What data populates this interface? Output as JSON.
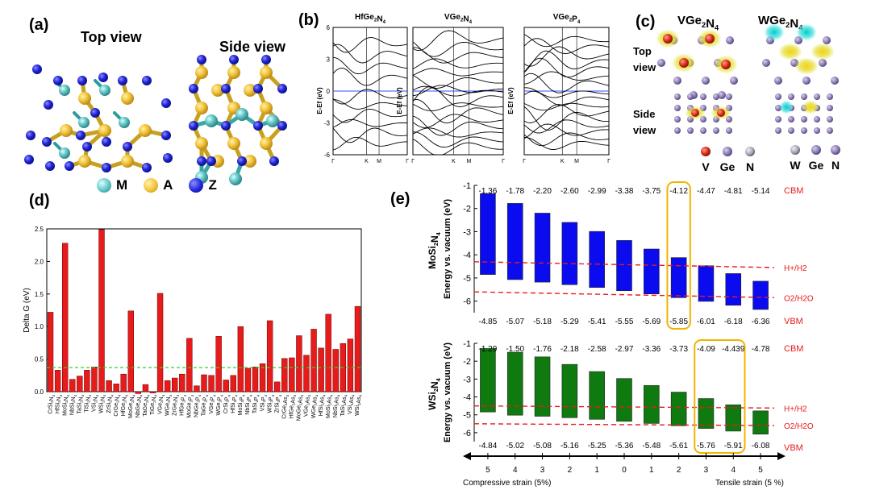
{
  "panel_a": {
    "label": "(a)",
    "top_view": "Top view",
    "side_view": "Side view",
    "legend": [
      {
        "symbol": "M",
        "color": "#5fc4c4"
      },
      {
        "symbol": "A",
        "color": "#f2c23a"
      },
      {
        "symbol": "Z",
        "color": "#1a1fd6"
      }
    ]
  },
  "panel_b": {
    "label": "(b)",
    "titles": [
      "HfGe2N4",
      "VGe2N4",
      "VGe2P4"
    ],
    "ylabel": "E-Ef (eV)",
    "yticks": [
      "6",
      "3",
      "0",
      "-3",
      "-6"
    ],
    "kpoints": [
      "Γ",
      "K",
      "M",
      "Γ"
    ]
  },
  "panel_c": {
    "label": "(c)",
    "titles": [
      "VGe2N4",
      "WGe2N4"
    ],
    "top_label": "Top view",
    "side_label": "Side view",
    "legend_left": [
      "V",
      "Ge",
      "N"
    ],
    "legend_right": [
      "W",
      "Ge",
      "N"
    ]
  },
  "panel_d": {
    "label": "(d)",
    "colors": {
      "bar": "#e81b1b",
      "threshold": "#2ad32a"
    }
  },
  "panel_e": {
    "label": "(e)",
    "cbm_label": "CBM",
    "vbm_label": "VBM",
    "h_label": "H+/H2",
    "o_label": "O2/H2O",
    "left_axis_label": "Compressive strain (5%)",
    "right_axis_label": "Tensile strain (5 %)",
    "colors": {
      "mosi": "#0b0bf0",
      "wsi": "#0f7a0f",
      "dashed": "#e81b1b",
      "box": "#f0b400"
    }
  },
  "chart_data": [
    {
      "type": "bar",
      "panel": "(d)",
      "title": "",
      "xlabel": "",
      "ylabel": "Delta G (eV)",
      "ylim": [
        0,
        2.5
      ],
      "yticks": [
        0.0,
        0.5,
        1.0,
        1.5,
        2.0,
        2.5
      ],
      "threshold": 0.37,
      "categories": [
        "CrSi2N4",
        "HfSi2N4",
        "MoSi2N4",
        "NbSi2N4",
        "TaSi2N4",
        "TiSi2N4",
        "VSi2N4",
        "WSi2N4",
        "ZrSi2N4",
        "CrGe2N4",
        "HfGe2N4",
        "MoGe2N4",
        "NbGe2N4",
        "TaGe2N4",
        "TiGe2N4",
        "VGe2N4",
        "WGe2N4",
        "ZrGe2N4",
        "HfGe2P4",
        "MoGe2P4",
        "NbGe2P4",
        "TaGe2P4",
        "VGe2P4",
        "WGe2P4",
        "CrSi2P4",
        "HfSi2P4",
        "MoSi2P4",
        "NbSi2P4",
        "TaSi2P4",
        "VSi2P4",
        "WSi2P4",
        "ZrSi2P4",
        "CrGe2As4",
        "HfGe2As4",
        "MoGe2As4",
        "VGe2As4",
        "WGe2As4",
        "HfSi2As4",
        "MoSi2As4",
        "NbSi2As4",
        "TaSi2As4",
        "VSi2As4",
        "WSi2As4"
      ],
      "values": [
        1.22,
        0.33,
        2.28,
        0.19,
        0.24,
        0.33,
        0.38,
        2.49,
        0.17,
        0.12,
        0.27,
        1.24,
        -0.03,
        0.11,
        -0.02,
        1.51,
        0.17,
        0.21,
        0.27,
        0.82,
        0.09,
        0.26,
        0.25,
        0.85,
        0.18,
        0.25,
        1.0,
        0.36,
        0.38,
        0.43,
        1.09,
        0.15,
        0.51,
        0.52,
        0.86,
        0.56,
        0.96,
        0.67,
        1.19,
        0.65,
        0.74,
        0.81,
        1.31
      ]
    },
    {
      "type": "bar",
      "panel": "(e) top",
      "title": "MoSi2N4",
      "xlabel": "",
      "ylabel": "Energy vs. vacuum (eV)",
      "ylim": [
        -6.5,
        -1
      ],
      "yticks": [
        -1,
        -2,
        -3,
        -4,
        -5,
        -6
      ],
      "categories": [
        "5",
        "4",
        "3",
        "2",
        "1",
        "0",
        "1",
        "2",
        "3",
        "4",
        "5"
      ],
      "series": [
        {
          "name": "CBM",
          "values": [
            -1.36,
            -1.78,
            -2.2,
            -2.6,
            -2.99,
            -3.38,
            -3.75,
            -4.12,
            -4.47,
            -4.81,
            -5.14
          ],
          "labels": [
            "-1.36",
            "-1.78",
            "-2.20",
            "-2.60",
            "-2.99",
            "-3.38",
            "-3.75",
            "-4.12",
            "-4.47",
            "-4.81",
            "-5.14"
          ]
        },
        {
          "name": "VBM",
          "values": [
            -4.85,
            -5.07,
            -5.18,
            -5.29,
            -5.41,
            -5.55,
            -5.69,
            -5.85,
            -6.01,
            -6.18,
            -6.36
          ],
          "labels": [
            "-4.85",
            "-5.07",
            "-5.18",
            "-5.29",
            "-5.41",
            "-5.55",
            "-5.69",
            "-5.85",
            "-6.01",
            "-6.18",
            "-6.36"
          ]
        }
      ],
      "h_level": [
        -4.3,
        -4.55
      ],
      "o_level": [
        -5.6,
        -5.85
      ],
      "highlight_index": [
        7
      ]
    },
    {
      "type": "bar",
      "panel": "(e) bottom",
      "title": "WSi2N4",
      "xlabel": "",
      "ylabel": "Energy vs. vacuum (eV)",
      "ylim": [
        -6.5,
        -1
      ],
      "yticks": [
        -1,
        -2,
        -3,
        -4,
        -5,
        -6
      ],
      "categories": [
        "5",
        "4",
        "3",
        "2",
        "1",
        "0",
        "1",
        "2",
        "3",
        "4",
        "5"
      ],
      "series": [
        {
          "name": "CBM",
          "values": [
            -1.29,
            -1.5,
            -1.76,
            -2.18,
            -2.58,
            -2.97,
            -3.36,
            -3.73,
            -4.09,
            -4.439,
            -4.78
          ],
          "labels": [
            "-1.29",
            "-1.50",
            "-1.76",
            "-2.18",
            "-2.58",
            "-2.97",
            "-3.36",
            "-3.73",
            "-4.09",
            "-4.439",
            "-4.78"
          ]
        },
        {
          "name": "VBM",
          "values": [
            -4.84,
            -5.02,
            -5.08,
            -5.16,
            -5.25,
            -5.36,
            -5.48,
            -5.61,
            -5.76,
            -5.91,
            -6.08
          ],
          "labels": [
            "-4.84",
            "-5.02",
            "-5.08",
            "-5.16",
            "-5.25",
            "-5.36",
            "-5.48",
            "-5.61",
            "-5.76",
            "-5.91",
            "-6.08"
          ]
        }
      ],
      "h_level": [
        -4.5,
        -4.62
      ],
      "o_level": [
        -5.5,
        -5.6
      ],
      "highlight_index": [
        8,
        9
      ]
    }
  ]
}
